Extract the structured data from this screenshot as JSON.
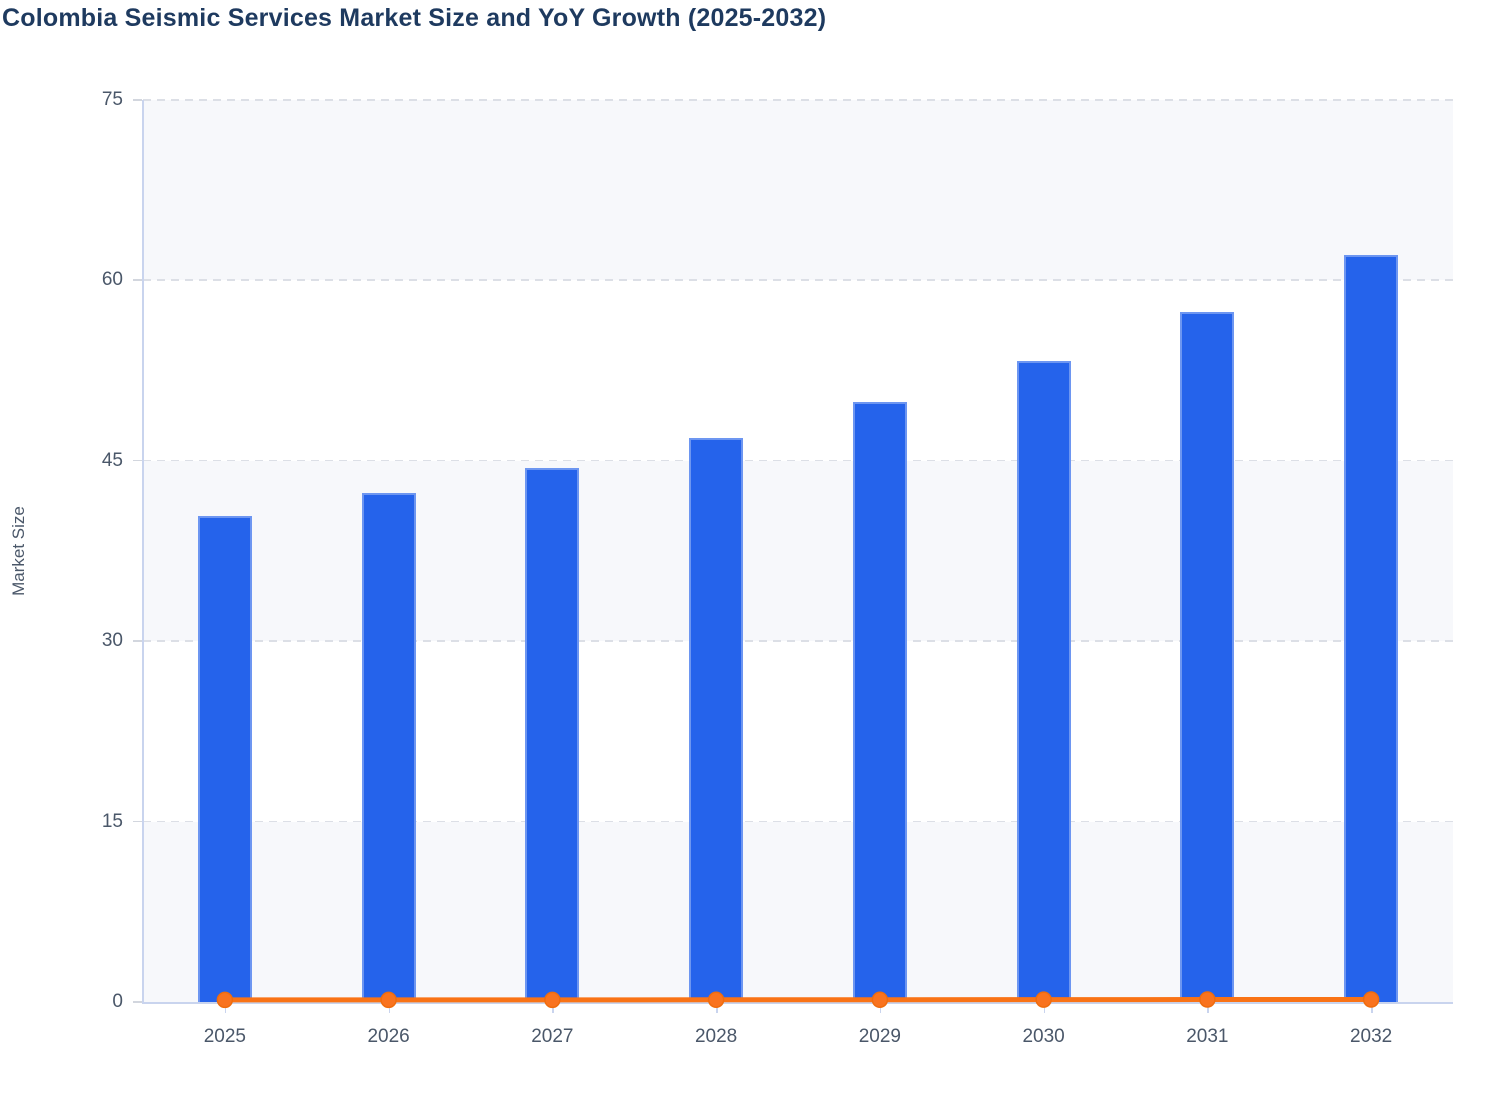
{
  "title": "Colombia Seismic Services Market Size and YoY Growth (2025-2032)",
  "y_axis": {
    "label": "Market Size",
    "ticks": [
      0,
      15,
      30,
      45,
      60,
      75
    ],
    "min": 0,
    "max": 75
  },
  "x_axis": {
    "categories": [
      "2025",
      "2026",
      "2027",
      "2028",
      "2029",
      "2030",
      "2031",
      "2032"
    ]
  },
  "chart_data": {
    "type": "bar",
    "title": "Colombia Seismic Services Market Size and YoY Growth (2025-2032)",
    "xlabel": "",
    "ylabel": "Market Size",
    "ylim": [
      0,
      75
    ],
    "categories": [
      "2025",
      "2026",
      "2027",
      "2028",
      "2029",
      "2030",
      "2031",
      "2032"
    ],
    "series": [
      {
        "name": "Market Size",
        "type": "bar",
        "values": [
          40.4,
          42.3,
          44.4,
          46.9,
          49.9,
          53.3,
          57.4,
          62.1
        ]
      },
      {
        "name": "YoY Growth",
        "type": "line",
        "values": [
          0.05,
          0.05,
          0.05,
          0.06,
          0.06,
          0.07,
          0.08,
          0.08
        ],
        "plotted_on_left_axis_near_zero": true
      }
    ],
    "legend": "none",
    "grid": "horizontal dashed gridlines with alternating split-area bands"
  },
  "colors": {
    "bar_fill": "#2563eb",
    "bar_edge": "#6d96f1",
    "line": "#f97316",
    "marker_fill": "#f9731f",
    "marker_edge": "#ef6c0e",
    "title_text": "#1e3a5f",
    "tick_text": "#4a5769",
    "axis_line": "#c9d4ee",
    "gridline": "#dcdfe6",
    "band_gray": "#f7f8fb",
    "band_white": "#ffffff"
  }
}
